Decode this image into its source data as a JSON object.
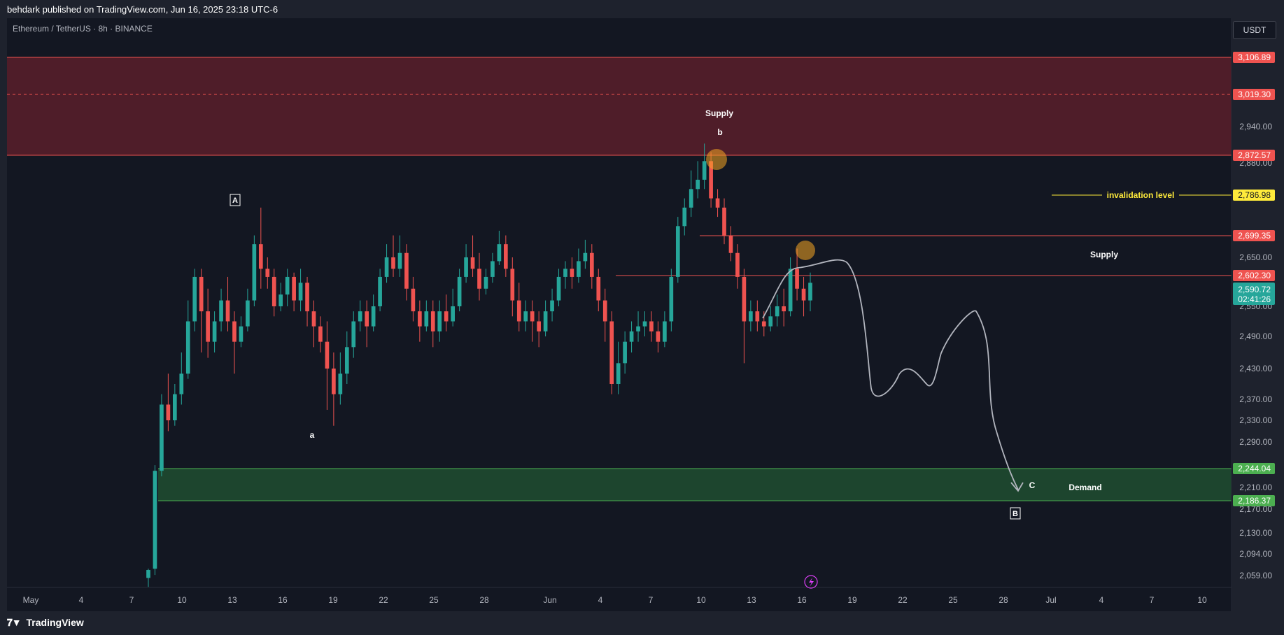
{
  "header": {
    "published": "behdark published on TradingView.com, Jun 16, 2025 23:18 UTC-6"
  },
  "symbol": "Ethereum / TetherUS · 8h · BINANCE",
  "currency_button": "USDT",
  "footer": {
    "logo_text": "TradingView",
    "logo_icon": "tradingview-logo-icon"
  },
  "colors": {
    "up": "#26a69a",
    "down": "#ef5350",
    "supply_zone": "#5a1e2a",
    "demand_zone": "#1f4a30",
    "invalidation": "#ffeb3b"
  },
  "chart_data": {
    "type": "candlestick",
    "y_ticks": [
      "2,940.00",
      "2,880.00",
      "2,650.00",
      "2,550.00",
      "2,490.00",
      "2,430.00",
      "2,370.00",
      "2,330.00",
      "2,290.00",
      "2,210.00",
      "2,170.00",
      "2,130.00",
      "2,094.00",
      "2,059.00"
    ],
    "x_ticks": [
      "May",
      "4",
      "7",
      "10",
      "13",
      "16",
      "19",
      "22",
      "25",
      "28",
      "Jun",
      "4",
      "7",
      "10",
      "13",
      "16",
      "19",
      "22",
      "25",
      "28",
      "Jul",
      "4",
      "7",
      "10"
    ],
    "price_labels": [
      {
        "text": "3,106.89",
        "value": 3106.89,
        "color": "#ef5350"
      },
      {
        "text": "3,019.30",
        "value": 3019.3,
        "color": "#ef5350"
      },
      {
        "text": "2,872.57",
        "value": 2872.57,
        "color": "#ef5350"
      },
      {
        "text": "2,786.98",
        "value": 2786.98,
        "color": "#ffeb3b"
      },
      {
        "text": "2,699.35",
        "value": 2699.35,
        "color": "#ef5350"
      },
      {
        "text": "2,602.30",
        "value": 2602.3,
        "color": "#ef5350"
      },
      {
        "text": "2,244.04",
        "value": 2244.04,
        "color": "#4caf50"
      },
      {
        "text": "2,186.37",
        "value": 2186.37,
        "color": "#4caf50"
      }
    ],
    "last_price": {
      "text": "2,590.72",
      "countdown": "02:41:26",
      "value": 2590.72
    },
    "supply_zone": {
      "top": 3106.89,
      "mid": 3019.3,
      "bottom": 2872.57,
      "label": "Supply"
    },
    "demand_zone": {
      "top": 2244.04,
      "bottom": 2186.37,
      "label": "Demand"
    },
    "invalidation": {
      "value": 2786.98,
      "label": "invalidation level"
    },
    "supply_line_upper": 2699.35,
    "supply_line_lower": 2602.3,
    "supply2_label": "Supply",
    "wave_labels": {
      "A": "A",
      "a": "a",
      "b": "b",
      "B": "B",
      "C": "C"
    },
    "candles": [
      [
        2055,
        2068,
        2040,
        2070
      ],
      [
        2070,
        2240,
        2060,
        2250
      ],
      [
        2240,
        2360,
        2230,
        2380
      ],
      [
        2360,
        2330,
        2310,
        2420
      ],
      [
        2330,
        2380,
        2320,
        2400
      ],
      [
        2380,
        2420,
        2360,
        2460
      ],
      [
        2420,
        2520,
        2410,
        2560
      ],
      [
        2520,
        2600,
        2500,
        2620
      ],
      [
        2600,
        2540,
        2460,
        2620
      ],
      [
        2540,
        2480,
        2450,
        2580
      ],
      [
        2480,
        2520,
        2460,
        2540
      ],
      [
        2520,
        2560,
        2500,
        2580
      ],
      [
        2560,
        2520,
        2500,
        2600
      ],
      [
        2520,
        2480,
        2420,
        2540
      ],
      [
        2480,
        2510,
        2470,
        2530
      ],
      [
        2510,
        2560,
        2500,
        2580
      ],
      [
        2560,
        2680,
        2550,
        2700
      ],
      [
        2680,
        2620,
        2580,
        2760
      ],
      [
        2620,
        2600,
        2580,
        2650
      ],
      [
        2600,
        2550,
        2530,
        2620
      ],
      [
        2550,
        2570,
        2540,
        2590
      ],
      [
        2570,
        2600,
        2550,
        2620
      ],
      [
        2600,
        2560,
        2540,
        2610
      ],
      [
        2560,
        2590,
        2540,
        2620
      ],
      [
        2590,
        2540,
        2510,
        2600
      ],
      [
        2540,
        2510,
        2470,
        2560
      ],
      [
        2510,
        2480,
        2460,
        2530
      ],
      [
        2480,
        2430,
        2350,
        2520
      ],
      [
        2430,
        2380,
        2320,
        2460
      ],
      [
        2380,
        2420,
        2360,
        2460
      ],
      [
        2420,
        2470,
        2400,
        2500
      ],
      [
        2470,
        2520,
        2450,
        2540
      ],
      [
        2520,
        2540,
        2500,
        2560
      ],
      [
        2540,
        2510,
        2470,
        2560
      ],
      [
        2510,
        2550,
        2500,
        2570
      ],
      [
        2550,
        2600,
        2540,
        2620
      ],
      [
        2600,
        2650,
        2590,
        2680
      ],
      [
        2650,
        2620,
        2600,
        2700
      ],
      [
        2620,
        2660,
        2600,
        2700
      ],
      [
        2660,
        2580,
        2560,
        2680
      ],
      [
        2580,
        2540,
        2520,
        2600
      ],
      [
        2540,
        2510,
        2480,
        2560
      ],
      [
        2510,
        2540,
        2500,
        2560
      ],
      [
        2540,
        2500,
        2470,
        2560
      ],
      [
        2500,
        2540,
        2480,
        2560
      ],
      [
        2540,
        2520,
        2500,
        2570
      ],
      [
        2520,
        2550,
        2510,
        2580
      ],
      [
        2550,
        2600,
        2540,
        2620
      ],
      [
        2600,
        2650,
        2590,
        2680
      ],
      [
        2650,
        2620,
        2600,
        2700
      ],
      [
        2620,
        2580,
        2560,
        2660
      ],
      [
        2580,
        2600,
        2570,
        2620
      ],
      [
        2600,
        2640,
        2590,
        2660
      ],
      [
        2640,
        2680,
        2630,
        2710
      ],
      [
        2680,
        2620,
        2600,
        2700
      ],
      [
        2620,
        2560,
        2530,
        2650
      ],
      [
        2560,
        2520,
        2500,
        2590
      ],
      [
        2520,
        2540,
        2500,
        2560
      ],
      [
        2540,
        2520,
        2480,
        2560
      ],
      [
        2520,
        2500,
        2470,
        2540
      ],
      [
        2500,
        2540,
        2490,
        2560
      ],
      [
        2540,
        2560,
        2520,
        2580
      ],
      [
        2560,
        2600,
        2550,
        2620
      ],
      [
        2600,
        2620,
        2580,
        2640
      ],
      [
        2620,
        2600,
        2580,
        2650
      ],
      [
        2600,
        2640,
        2590,
        2670
      ],
      [
        2640,
        2660,
        2620,
        2690
      ],
      [
        2660,
        2600,
        2580,
        2680
      ],
      [
        2600,
        2560,
        2540,
        2620
      ],
      [
        2560,
        2520,
        2480,
        2580
      ],
      [
        2520,
        2400,
        2380,
        2540
      ],
      [
        2400,
        2440,
        2380,
        2480
      ],
      [
        2440,
        2480,
        2420,
        2500
      ],
      [
        2480,
        2500,
        2460,
        2520
      ],
      [
        2500,
        2510,
        2480,
        2540
      ],
      [
        2510,
        2520,
        2490,
        2540
      ],
      [
        2520,
        2500,
        2480,
        2540
      ],
      [
        2500,
        2480,
        2460,
        2520
      ],
      [
        2480,
        2520,
        2470,
        2540
      ],
      [
        2520,
        2600,
        2500,
        2620
      ],
      [
        2600,
        2720,
        2590,
        2740
      ],
      [
        2720,
        2760,
        2700,
        2780
      ],
      [
        2760,
        2800,
        2740,
        2840
      ],
      [
        2800,
        2820,
        2780,
        2860
      ],
      [
        2820,
        2860,
        2800,
        2900
      ],
      [
        2860,
        2780,
        2760,
        2880
      ],
      [
        2780,
        2760,
        2740,
        2800
      ],
      [
        2760,
        2700,
        2680,
        2780
      ],
      [
        2700,
        2660,
        2640,
        2720
      ],
      [
        2660,
        2600,
        2580,
        2680
      ],
      [
        2600,
        2520,
        2440,
        2620
      ],
      [
        2520,
        2540,
        2500,
        2560
      ],
      [
        2540,
        2520,
        2500,
        2560
      ],
      [
        2520,
        2510,
        2490,
        2540
      ],
      [
        2510,
        2530,
        2500,
        2550
      ],
      [
        2530,
        2550,
        2510,
        2570
      ],
      [
        2550,
        2540,
        2510,
        2580
      ],
      [
        2540,
        2620,
        2530,
        2650
      ],
      [
        2620,
        2580,
        2560,
        2670
      ],
      [
        2580,
        2560,
        2530,
        2600
      ],
      [
        2560,
        2590,
        2540,
        2610
      ]
    ]
  },
  "bottom_icon": "lightning-icon"
}
